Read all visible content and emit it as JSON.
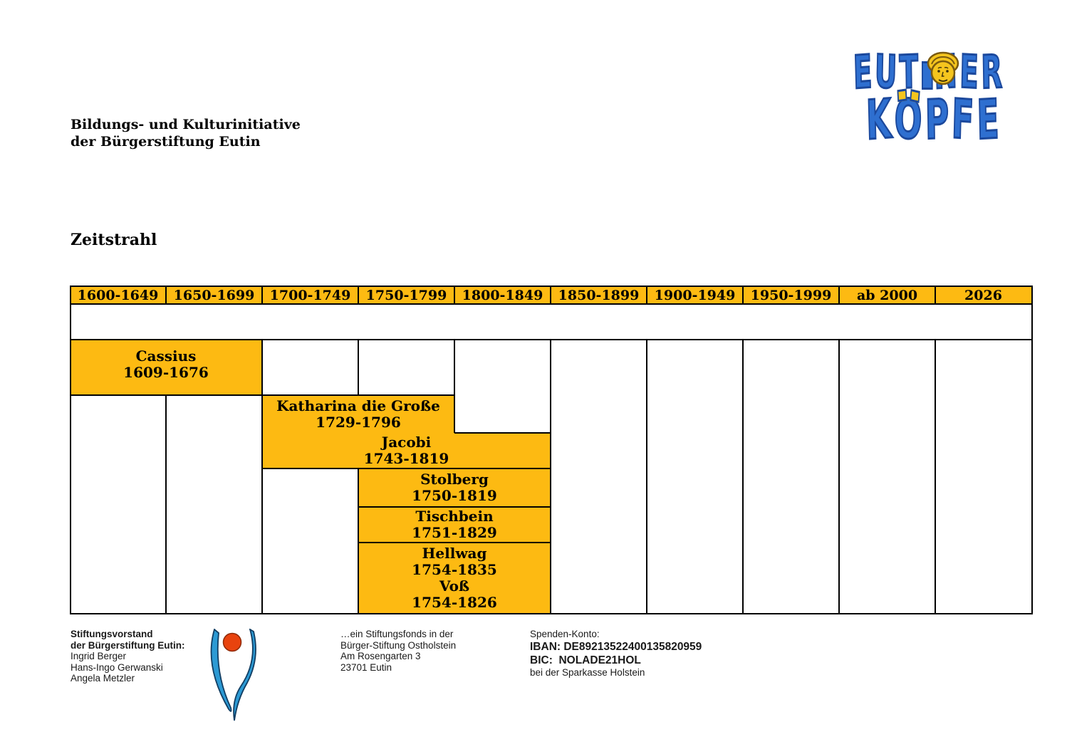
{
  "page": {
    "org_line1": "Bildungs- und Kulturinitiative",
    "org_line2": "der Bürgerstiftung Eutin",
    "heading": "Zeitstrahl"
  },
  "logo": {
    "line1_pre": "EUT",
    "line1_post": "NER",
    "line2": "KÖPFE",
    "blue": "#2e6fd0",
    "blue_dark": "#1b489c",
    "yellow": "#f5c51e"
  },
  "timeline": {
    "gold_color": "#FDBA12",
    "columns": [
      "1600-1649",
      "1650-1699",
      "1700-1749",
      "1750-1799",
      "1800-1849",
      "1850-1899",
      "1900-1949",
      "1950-1999",
      "ab 2000",
      "2026"
    ],
    "bars": [
      {
        "name": "Cassius",
        "years": "1609-1676"
      },
      {
        "name": "Katharina die Große",
        "years": "1729-1796"
      },
      {
        "name": "Jacobi",
        "years": "1743-1819"
      },
      {
        "name": "Stolberg",
        "years": "1750-1819"
      },
      {
        "name": "Tischbein",
        "years": "1751-1829"
      },
      {
        "name": "Hellwag",
        "years": "1754-1835"
      },
      {
        "name": "Voß",
        "years": "1754-1826"
      }
    ]
  },
  "footer": {
    "board_title_line1": "Stiftungsvorstand",
    "board_title_line2": "der Bürgerstiftung Eutin:",
    "board_members": [
      "Ingrid Berger",
      "Hans-Ingo Gerwanski",
      "Angela Metzler"
    ],
    "fund_lines": [
      "…ein Stiftungsfonds in der",
      "Bürger-Stiftung Ostholstein",
      "Am Rosengarten 3",
      "23701 Eutin"
    ],
    "donation_label": "Spenden-Konto:",
    "iban": "IBAN: DE89213522400135820959",
    "bic": "BIC:  NOLADE21HOL",
    "bank": "bei der Sparkasse Holstein"
  }
}
